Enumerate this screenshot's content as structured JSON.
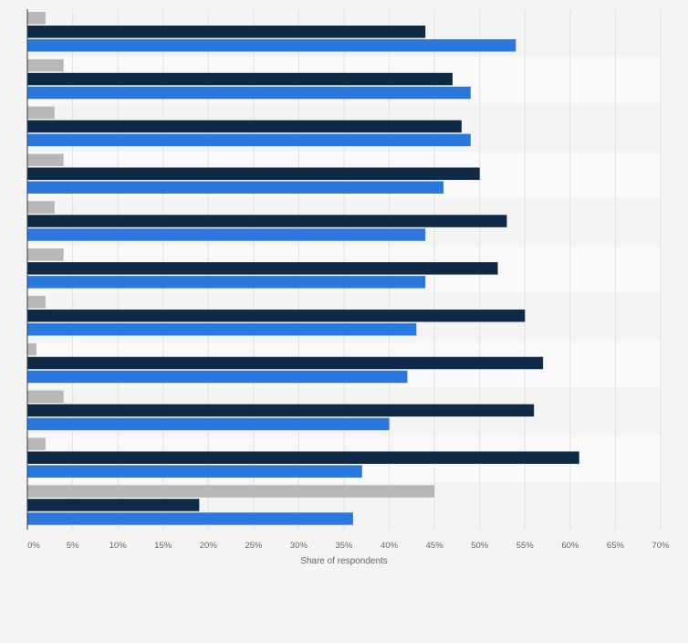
{
  "chart_data": {
    "type": "bar",
    "orientation": "horizontal",
    "title": "",
    "xlabel": "Share of respondents",
    "ylabel": "",
    "xlim": [
      0,
      70
    ],
    "xticks": [
      0,
      5,
      10,
      15,
      20,
      25,
      30,
      35,
      40,
      45,
      50,
      55,
      60,
      65,
      70
    ],
    "xtick_labels": [
      "0%",
      "5%",
      "10%",
      "15%",
      "20%",
      "25%",
      "30%",
      "35%",
      "40%",
      "45%",
      "50%",
      "55%",
      "60%",
      "65%",
      "70%"
    ],
    "grid": true,
    "legend": "none",
    "categories": [
      "",
      "",
      "",
      "",
      "",
      "",
      "",
      "",
      "",
      "",
      ""
    ],
    "series": [
      {
        "color": "#b8b8b8",
        "values": [
          2,
          4,
          3,
          4,
          3,
          4,
          2,
          1,
          4,
          2,
          45
        ]
      },
      {
        "color": "#0f2a47",
        "values": [
          44,
          47,
          48,
          50,
          53,
          52,
          55,
          57,
          56,
          61,
          19
        ]
      },
      {
        "color": "#2a78de",
        "values": [
          54,
          49,
          49,
          46,
          44,
          44,
          43,
          42,
          40,
          37,
          36
        ]
      }
    ]
  },
  "colors": {
    "background": "#f4f4f4",
    "plot_band_light": "#f9f9f9",
    "plot_band_dark": "#f4f4f4",
    "grid": "#e2e2e2",
    "axis": "#333333",
    "tick_text": "#666666"
  }
}
